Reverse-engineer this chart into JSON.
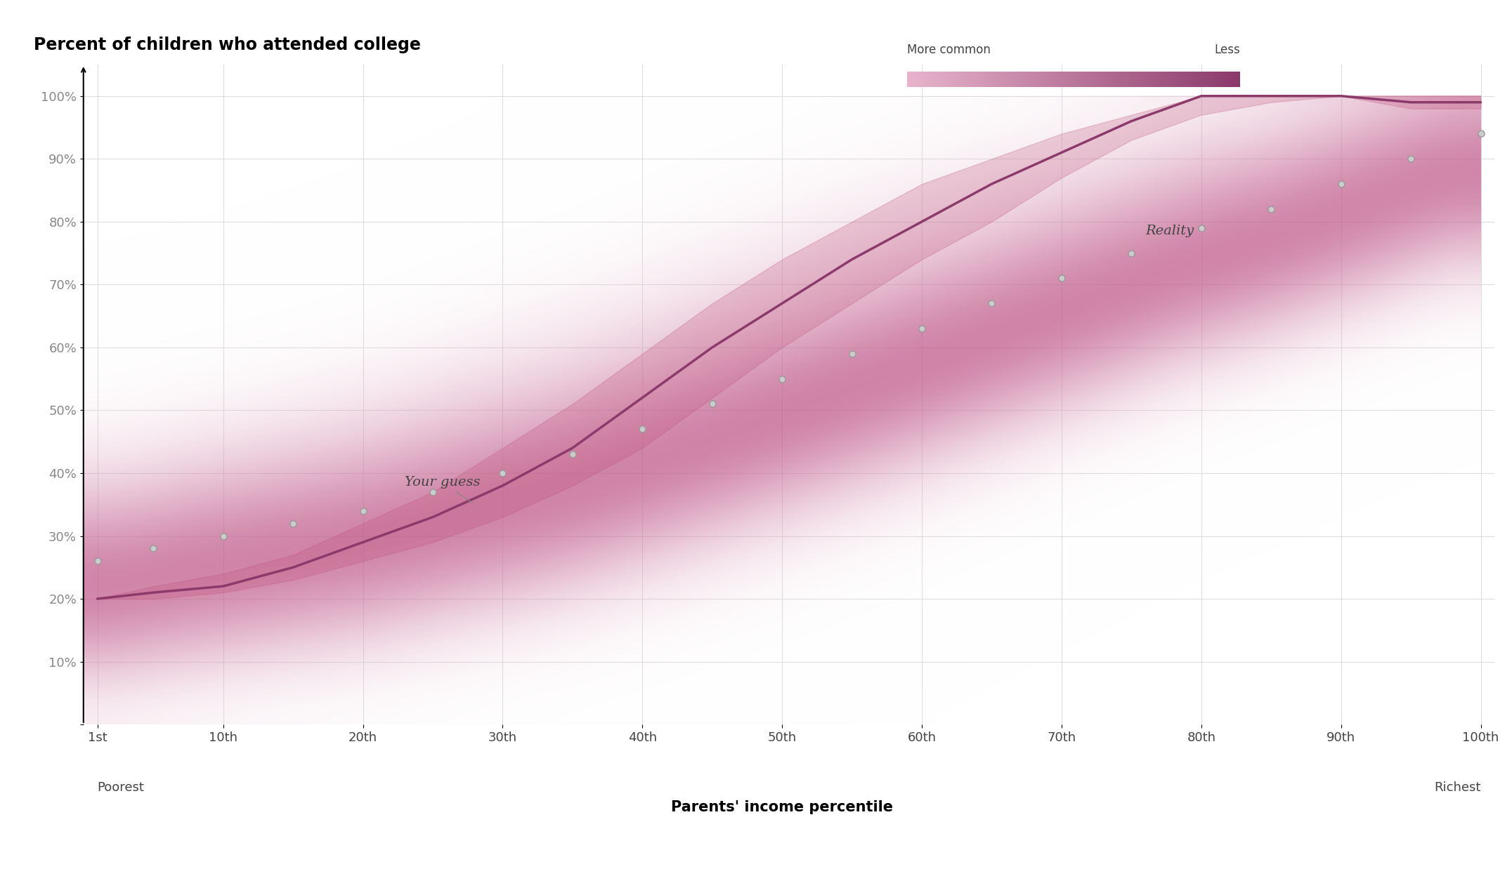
{
  "title": "Percent of children who attended college",
  "xlabel": "Parents' income percentile",
  "ylabel": "",
  "x_ticks": [
    1,
    10,
    20,
    30,
    40,
    50,
    60,
    70,
    80,
    90,
    100
  ],
  "x_tick_labels": [
    "1st",
    "10th",
    "20th",
    "30th",
    "40th",
    "50th",
    "60th",
    "70th",
    "80th",
    "90th",
    "100th"
  ],
  "y_ticks": [
    0,
    10,
    20,
    30,
    40,
    50,
    60,
    70,
    80,
    90,
    100
  ],
  "y_tick_labels": [
    "",
    "10%",
    "20%",
    "30%",
    "40%",
    "50%",
    "60%",
    "70%",
    "80%",
    "90%",
    "100%"
  ],
  "poorest_label": "Poorest",
  "richest_label": "Richest",
  "legend_more_common": "More common",
  "legend_less": "Less",
  "reality_label": "Reality",
  "your_guess_label": "Your guess",
  "bg_color": "#ffffff",
  "grid_color": "#dddddd",
  "reality_line_color": "#8b3a6b",
  "dotted_line_color": "#aaaaaa",
  "heatmap_color_start": "#f5c0d8",
  "heatmap_color_end": "#8b3a6b",
  "reality_x": [
    1,
    5,
    10,
    15,
    20,
    25,
    30,
    35,
    40,
    45,
    50,
    55,
    60,
    65,
    70,
    75,
    80,
    85,
    90,
    95,
    100
  ],
  "reality_y": [
    20,
    21,
    22,
    25,
    29,
    33,
    38,
    44,
    52,
    60,
    67,
    74,
    80,
    86,
    91,
    96,
    100,
    100,
    100,
    99,
    99
  ],
  "reality_upper": [
    20,
    22,
    24,
    27,
    32,
    37,
    44,
    51,
    59,
    67,
    74,
    80,
    86,
    90,
    94,
    97,
    100,
    100,
    100,
    100,
    100
  ],
  "reality_lower": [
    20,
    20,
    21,
    23,
    26,
    29,
    33,
    38,
    44,
    52,
    60,
    67,
    74,
    80,
    87,
    93,
    97,
    99,
    100,
    98,
    98
  ],
  "your_guess_x": [
    1,
    5,
    10,
    15,
    20,
    25,
    30,
    35,
    40,
    45,
    50,
    55,
    60,
    65,
    70,
    75,
    80,
    85,
    90,
    95,
    100
  ],
  "your_guess_y": [
    26,
    28,
    30,
    32,
    34,
    37,
    40,
    43,
    47,
    51,
    55,
    59,
    63,
    67,
    71,
    75,
    79,
    82,
    86,
    90,
    94
  ]
}
